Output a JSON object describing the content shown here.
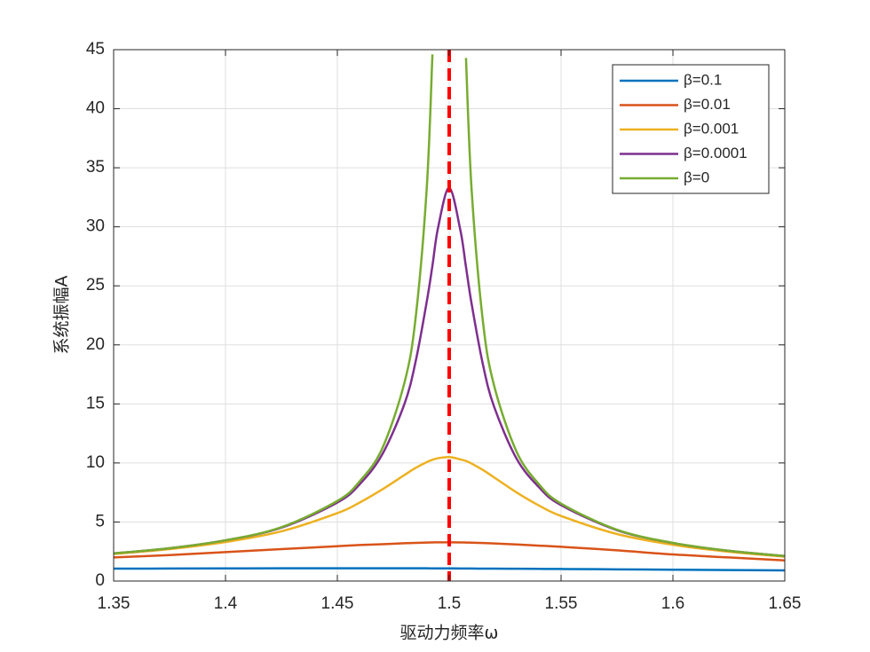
{
  "chart_data": {
    "type": "line",
    "xlabel": "驱动力频率ω",
    "ylabel": "系统振幅A",
    "x": [
      1.35,
      1.375,
      1.4,
      1.425,
      1.45,
      1.46,
      1.47,
      1.48,
      1.485,
      1.49,
      1.4925,
      1.495,
      1.5,
      1.505,
      1.5075,
      1.51,
      1.515,
      1.52,
      1.53,
      1.54,
      1.55,
      1.575,
      1.6,
      1.625,
      1.65
    ],
    "series": [
      {
        "name": "β=0.1",
        "color": "#0072bd",
        "values": [
          1.05,
          1.06,
          1.07,
          1.08,
          1.08,
          1.08,
          1.08,
          1.08,
          1.08,
          1.08,
          1.07,
          1.07,
          1.07,
          1.06,
          1.06,
          1.06,
          1.05,
          1.05,
          1.04,
          1.03,
          1.02,
          0.99,
          0.96,
          0.93,
          0.9
        ]
      },
      {
        "name": "β=0.01",
        "color": "#d95319",
        "values": [
          2.0,
          2.2,
          2.45,
          2.7,
          2.95,
          3.05,
          3.12,
          3.2,
          3.23,
          3.26,
          3.27,
          3.28,
          3.28,
          3.27,
          3.26,
          3.25,
          3.22,
          3.18,
          3.1,
          3.0,
          2.9,
          2.6,
          2.25,
          2.0,
          1.75
        ]
      },
      {
        "name": "β=0.001",
        "color": "#edb120",
        "values": [
          2.29,
          2.7,
          3.3,
          4.21,
          5.75,
          6.65,
          7.75,
          8.98,
          9.58,
          10.08,
          10.27,
          10.4,
          10.5,
          10.3,
          10.17,
          9.95,
          9.41,
          8.79,
          7.52,
          6.41,
          5.51,
          3.98,
          3.07,
          2.48,
          2.07
        ]
      },
      {
        "name": "β=0.0001",
        "color": "#7e2f8e",
        "values": [
          2.34,
          2.78,
          3.45,
          4.52,
          6.65,
          8.2,
          10.7,
          15.0,
          18.6,
          23.7,
          26.7,
          29.9,
          33.3,
          29.7,
          26.6,
          23.5,
          18.4,
          14.8,
          10.4,
          7.97,
          6.43,
          4.31,
          3.22,
          2.56,
          2.12
        ]
      },
      {
        "name": "β=0",
        "color": "#77ac30",
        "values": [
          2.34,
          2.78,
          3.45,
          4.56,
          6.78,
          8.45,
          11.2,
          16.8,
          22.3,
          33.4,
          44.6,
          null,
          null,
          null,
          44.3,
          33.2,
          22.1,
          16.6,
          11.0,
          8.22,
          6.56,
          4.34,
          3.23,
          2.56,
          2.12
        ]
      }
    ],
    "vline": {
      "x": 1.5,
      "color": "#ff0000"
    },
    "xlim": [
      1.35,
      1.65
    ],
    "xticks": [
      1.35,
      1.4,
      1.45,
      1.5,
      1.55,
      1.6,
      1.65
    ],
    "ylim": [
      0,
      45
    ],
    "yticks": [
      0,
      5,
      10,
      15,
      20,
      25,
      30,
      35,
      40,
      45
    ],
    "grid": true,
    "legend": "northeast"
  }
}
